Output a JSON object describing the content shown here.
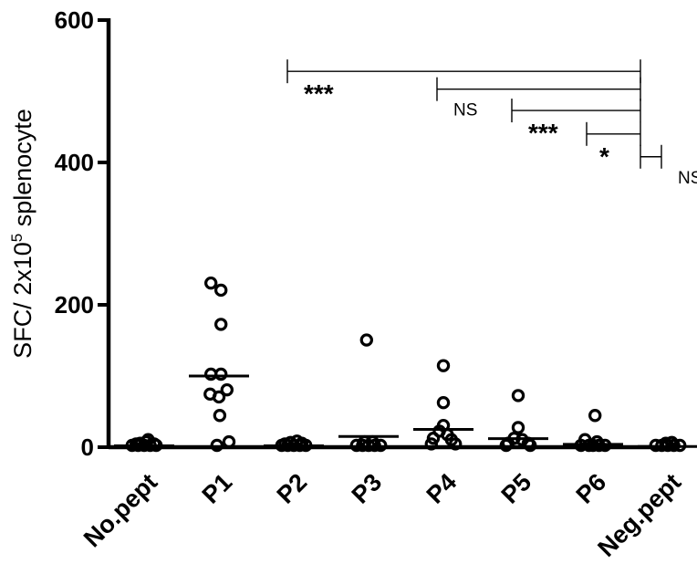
{
  "chart_data": {
    "type": "scatter",
    "ylabel": "SFC/ 2x10",
    "ylabel_sup": "5",
    "ylabel_suffix": " splenocyte",
    "ylim": [
      0,
      600
    ],
    "yticks": [
      0,
      200,
      400,
      600
    ],
    "grid": false,
    "categories": [
      "No.pept",
      "P1",
      "P2",
      "P3",
      "P4",
      "P5",
      "P6",
      "Neg.pept"
    ],
    "groups": [
      {
        "category": "No.pept",
        "points": [
          [
            -0.3,
            0
          ],
          [
            -0.15,
            0
          ],
          [
            0,
            0
          ],
          [
            0.15,
            0
          ],
          [
            0.3,
            0
          ],
          [
            -0.1,
            3
          ],
          [
            0.05,
            5
          ],
          [
            0.1,
            8
          ],
          [
            -0.2,
            2
          ],
          [
            0.25,
            2
          ]
        ],
        "mean": 2
      },
      {
        "category": "P1",
        "points": [
          [
            -0.2,
            228
          ],
          [
            0.05,
            218
          ],
          [
            0.05,
            170
          ],
          [
            -0.2,
            100
          ],
          [
            0.05,
            100
          ],
          [
            0.2,
            78
          ],
          [
            -0.22,
            72
          ],
          [
            0,
            68
          ],
          [
            0.02,
            42
          ],
          [
            -0.05,
            0
          ],
          [
            0.25,
            5
          ]
        ],
        "mean": 100
      },
      {
        "category": "P2",
        "points": [
          [
            -0.3,
            0
          ],
          [
            -0.15,
            0
          ],
          [
            0,
            0
          ],
          [
            0.15,
            0
          ],
          [
            0.3,
            0
          ],
          [
            -0.08,
            4
          ],
          [
            0.08,
            6
          ],
          [
            0.2,
            3
          ],
          [
            -0.22,
            2
          ]
        ],
        "mean": 2
      },
      {
        "category": "P3",
        "points": [
          [
            -0.05,
            148
          ],
          [
            -0.3,
            0
          ],
          [
            -0.15,
            0
          ],
          [
            0,
            0
          ],
          [
            0.15,
            0
          ],
          [
            0.3,
            0
          ],
          [
            -0.1,
            5
          ],
          [
            0.1,
            5
          ]
        ],
        "mean": 15
      },
      {
        "category": "P4",
        "points": [
          [
            0,
            112
          ],
          [
            0,
            60
          ],
          [
            -0.1,
            20
          ],
          [
            0.1,
            15
          ],
          [
            -0.25,
            10
          ],
          [
            0.2,
            8
          ],
          [
            -0.3,
            2
          ],
          [
            0.3,
            2
          ],
          [
            0,
            28
          ]
        ],
        "mean": 25
      },
      {
        "category": "P5",
        "points": [
          [
            0,
            70
          ],
          [
            0,
            25
          ],
          [
            -0.1,
            10
          ],
          [
            0.1,
            8
          ],
          [
            -0.25,
            3
          ],
          [
            0.25,
            3
          ],
          [
            -0.3,
            0
          ],
          [
            0.3,
            0
          ]
        ],
        "mean": 12
      },
      {
        "category": "P6",
        "points": [
          [
            0.05,
            42
          ],
          [
            -0.2,
            8
          ],
          [
            0.1,
            5
          ],
          [
            -0.3,
            0
          ],
          [
            -0.1,
            0
          ],
          [
            0,
            0
          ],
          [
            0.15,
            0
          ],
          [
            0.3,
            0
          ]
        ],
        "mean": 4
      },
      {
        "category": "Neg.pept",
        "points": [
          [
            -0.3,
            0
          ],
          [
            -0.15,
            0
          ],
          [
            0,
            0
          ],
          [
            0.15,
            0
          ],
          [
            0.3,
            0
          ],
          [
            -0.05,
            3
          ],
          [
            0.1,
            4
          ]
        ],
        "mean": 1
      }
    ],
    "significance": [
      {
        "from": "P1",
        "to": "Neg.pept",
        "y": 528,
        "label": "***"
      },
      {
        "from": "P3",
        "to": "Neg.pept",
        "y": 503,
        "label": "NS"
      },
      {
        "from": "P4",
        "to": "Neg.pept",
        "y": 473,
        "label": "***"
      },
      {
        "from": "P5",
        "to": "Neg.pept",
        "y": 440,
        "label": "*"
      },
      {
        "from": "P6",
        "to": "Neg.pept",
        "y": 408,
        "label": "NS"
      }
    ]
  }
}
